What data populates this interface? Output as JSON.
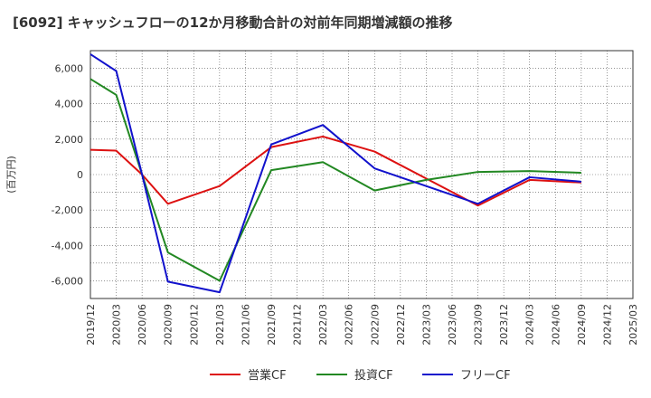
{
  "chart_data": {
    "type": "line",
    "title": "[6092]  キャッシュフローの12か月移動合計の対前年同期増減額の推移",
    "ylabel": "(百万円)",
    "xlabel": "",
    "ylim": [
      -7000,
      7000
    ],
    "y_ticks": [
      -6000,
      -4000,
      -2000,
      0,
      2000,
      4000,
      6000
    ],
    "y_tick_labels": [
      "-6,000",
      "-4,000",
      "-2,000",
      "0",
      "2,000",
      "4,000",
      "6,000"
    ],
    "x_ticks": [
      "2019/12",
      "2020/03",
      "2020/06",
      "2020/09",
      "2020/12",
      "2021/03",
      "2021/06",
      "2021/09",
      "2021/12",
      "2022/03",
      "2022/06",
      "2022/09",
      "2022/12",
      "2023/03",
      "2023/06",
      "2023/09",
      "2023/12",
      "2024/03",
      "2024/06",
      "2024/09",
      "2024/12",
      "2025/03"
    ],
    "grid": true,
    "legend_position": "bottom",
    "series": [
      {
        "name": "営業CF",
        "color": "#dd1111",
        "points": [
          [
            "2019/12",
            1400
          ],
          [
            "2020/03",
            1350
          ],
          [
            "2020/06",
            0
          ],
          [
            "2020/09",
            -1650
          ],
          [
            "2021/03",
            -650
          ],
          [
            "2021/09",
            1550
          ],
          [
            "2022/03",
            2150
          ],
          [
            "2022/09",
            1300
          ],
          [
            "2023/09",
            -1750
          ],
          [
            "2024/03",
            -300
          ],
          [
            "2024/09",
            -450
          ]
        ]
      },
      {
        "name": "投資CF",
        "color": "#228822",
        "points": [
          [
            "2019/12",
            5400
          ],
          [
            "2020/03",
            4500
          ],
          [
            "2020/06",
            0
          ],
          [
            "2020/09",
            -4400
          ],
          [
            "2021/03",
            -6000
          ],
          [
            "2021/09",
            250
          ],
          [
            "2022/03",
            700
          ],
          [
            "2022/09",
            -900
          ],
          [
            "2023/03",
            -300
          ],
          [
            "2023/09",
            150
          ],
          [
            "2024/03",
            200
          ],
          [
            "2024/09",
            100
          ]
        ]
      },
      {
        "name": "フリーCF",
        "color": "#1111cc",
        "points": [
          [
            "2019/12",
            6800
          ],
          [
            "2020/03",
            5850
          ],
          [
            "2020/06",
            0
          ],
          [
            "2020/09",
            -6050
          ],
          [
            "2021/03",
            -6650
          ],
          [
            "2021/09",
            1700
          ],
          [
            "2022/03",
            2800
          ],
          [
            "2022/09",
            350
          ],
          [
            "2023/09",
            -1650
          ],
          [
            "2024/03",
            -150
          ],
          [
            "2024/09",
            -400
          ]
        ]
      }
    ]
  }
}
